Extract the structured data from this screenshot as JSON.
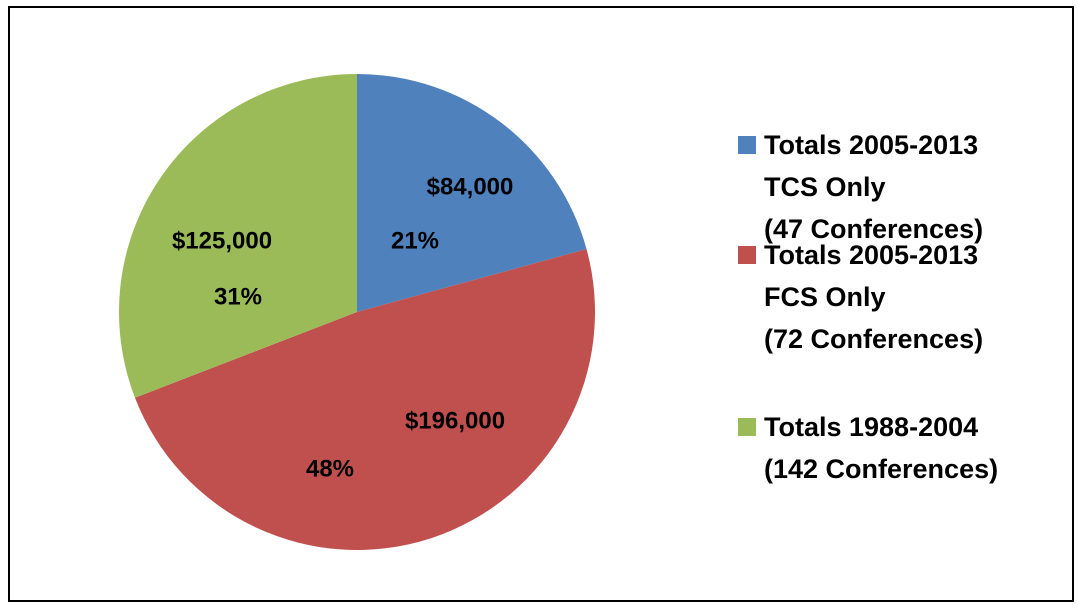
{
  "chart_data": {
    "type": "pie",
    "series": [
      {
        "name": "Totals 2005-2013\nTCS Only\n(47 Conferences)",
        "color": "#4f81bd"
      },
      {
        "name": "Totals 2005-2013\nFCS Only\n(72 Conferences)",
        "color": "#c0504d"
      },
      {
        "name": "Totals 1988-2004\n(142 Conferences)",
        "color": "#9bbb59"
      }
    ],
    "values": [
      84000,
      196000,
      125000
    ],
    "value_labels": [
      "$84,000",
      "$196,000",
      "$125,000"
    ],
    "percents": [
      21,
      48,
      31
    ],
    "percent_labels": [
      "21%",
      "48%",
      "31%"
    ],
    "legend": "right"
  }
}
